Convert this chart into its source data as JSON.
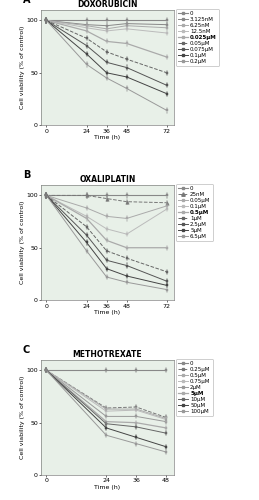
{
  "panel_A": {
    "title": "DOXORUBICIN",
    "label": "A",
    "time_points": [
      0,
      24,
      36,
      48,
      72
    ],
    "series": [
      {
        "label": "0",
        "values": [
          100,
          100,
          100,
          100,
          100
        ],
        "color": "#888888",
        "marker": "s",
        "ls": "-",
        "lw": 0.8,
        "bold": false,
        "ms": 2.0
      },
      {
        "label": "3.125nM",
        "values": [
          100,
          96,
          95,
          97,
          96
        ],
        "color": "#888888",
        "marker": "s",
        "ls": "-",
        "lw": 0.7,
        "bold": false,
        "ms": 2.0
      },
      {
        "label": "6.25nM",
        "values": [
          100,
          95,
          92,
          95,
          93
        ],
        "color": "#aaaaaa",
        "marker": "s",
        "ls": "-",
        "lw": 0.7,
        "bold": false,
        "ms": 2.0
      },
      {
        "label": "12.5nM",
        "values": [
          100,
          93,
          90,
          92,
          88
        ],
        "color": "#bbbbbb",
        "marker": "s",
        "ls": "-",
        "lw": 0.7,
        "bold": false,
        "ms": 2.0
      },
      {
        "label": "0.025μM",
        "values": [
          100,
          90,
          80,
          78,
          65
        ],
        "color": "#aaaaaa",
        "marker": "s",
        "ls": "-",
        "lw": 0.9,
        "bold": true,
        "ms": 2.0
      },
      {
        "label": "0.05μM",
        "values": [
          100,
          83,
          70,
          63,
          50
        ],
        "color": "#666666",
        "marker": "s",
        "ls": "--",
        "lw": 0.7,
        "bold": false,
        "ms": 2.0
      },
      {
        "label": "0.075μM",
        "values": [
          100,
          76,
          60,
          55,
          38
        ],
        "color": "#555555",
        "marker": "s",
        "ls": "-",
        "lw": 0.7,
        "bold": false,
        "ms": 2.0
      },
      {
        "label": "0.1μM",
        "values": [
          100,
          68,
          50,
          46,
          30
        ],
        "color": "#444444",
        "marker": "s",
        "ls": "-",
        "lw": 0.7,
        "bold": false,
        "ms": 2.0
      },
      {
        "label": "0.2μM",
        "values": [
          100,
          58,
          45,
          35,
          14
        ],
        "color": "#999999",
        "marker": "s",
        "ls": "-",
        "lw": 0.7,
        "bold": false,
        "ms": 2.0
      }
    ],
    "xlabel": "Time (h)",
    "ylabel": "Cell viability (% of control)",
    "ylim": [
      0,
      110
    ],
    "xlim": [
      -3,
      76
    ],
    "xticks": [
      0,
      24,
      36,
      48,
      72
    ],
    "yticks": [
      0,
      50,
      100
    ]
  },
  "panel_B": {
    "title": "OXALIPLATIN",
    "label": "B",
    "time_points": [
      0,
      24,
      36,
      48,
      72
    ],
    "series": [
      {
        "label": "0",
        "values": [
          100,
          100,
          100,
          100,
          100
        ],
        "color": "#888888",
        "marker": "s",
        "ls": "-",
        "lw": 0.8,
        "bold": false,
        "ms": 2.0
      },
      {
        "label": "25nM",
        "values": [
          100,
          100,
          97,
          94,
          93
        ],
        "color": "#777777",
        "marker": "^",
        "ls": "--",
        "lw": 0.7,
        "bold": false,
        "ms": 2.5
      },
      {
        "label": "0.05μM",
        "values": [
          100,
          88,
          80,
          78,
          90
        ],
        "color": "#aaaaaa",
        "marker": "s",
        "ls": "-",
        "lw": 0.7,
        "bold": false,
        "ms": 2.0
      },
      {
        "label": "0.1μM",
        "values": [
          100,
          80,
          68,
          63,
          87
        ],
        "color": "#bbbbbb",
        "marker": "s",
        "ls": "-",
        "lw": 0.7,
        "bold": false,
        "ms": 2.0
      },
      {
        "label": "0.5μM",
        "values": [
          100,
          78,
          57,
          50,
          50
        ],
        "color": "#aaaaaa",
        "marker": "s",
        "ls": "-",
        "lw": 0.9,
        "bold": true,
        "ms": 2.0
      },
      {
        "label": "1μM",
        "values": [
          100,
          70,
          47,
          40,
          27
        ],
        "color": "#666666",
        "marker": "s",
        "ls": "--",
        "lw": 0.7,
        "bold": false,
        "ms": 2.0
      },
      {
        "label": "2.5μM",
        "values": [
          100,
          62,
          38,
          33,
          18
        ],
        "color": "#555555",
        "marker": "s",
        "ls": "-",
        "lw": 0.7,
        "bold": false,
        "ms": 2.0
      },
      {
        "label": "5μM",
        "values": [
          100,
          55,
          30,
          23,
          14
        ],
        "color": "#444444",
        "marker": "s",
        "ls": "-",
        "lw": 0.7,
        "bold": false,
        "ms": 2.0
      },
      {
        "label": "6.5μM",
        "values": [
          100,
          47,
          22,
          17,
          10
        ],
        "color": "#999999",
        "marker": "s",
        "ls": "-",
        "lw": 0.7,
        "bold": false,
        "ms": 2.0
      }
    ],
    "xlabel": "Time (h)",
    "ylabel": "Cell viability (% of control)",
    "ylim": [
      0,
      110
    ],
    "xlim": [
      -3,
      76
    ],
    "xticks": [
      0,
      24,
      36,
      48,
      72
    ],
    "yticks": [
      0,
      50,
      100
    ]
  },
  "panel_C": {
    "title": "METHOTREXATE",
    "label": "C",
    "time_points": [
      0,
      24,
      36,
      48
    ],
    "series": [
      {
        "label": "0",
        "values": [
          100,
          100,
          100,
          100
        ],
        "color": "#888888",
        "marker": "s",
        "ls": "-",
        "lw": 0.8,
        "bold": false,
        "ms": 2.0
      },
      {
        "label": "0.25μM",
        "values": [
          100,
          64,
          65,
          55
        ],
        "color": "#777777",
        "marker": "s",
        "ls": "--",
        "lw": 0.7,
        "bold": false,
        "ms": 2.0
      },
      {
        "label": "0.5μM",
        "values": [
          100,
          63,
          63,
          54
        ],
        "color": "#aaaaaa",
        "marker": "s",
        "ls": "-",
        "lw": 0.7,
        "bold": false,
        "ms": 2.0
      },
      {
        "label": "0.75μM",
        "values": [
          100,
          61,
          62,
          53
        ],
        "color": "#bbbbbb",
        "marker": "s",
        "ls": "-",
        "lw": 0.7,
        "bold": false,
        "ms": 2.0
      },
      {
        "label": "2μM",
        "values": [
          100,
          56,
          56,
          51
        ],
        "color": "#999999",
        "marker": "s",
        "ls": "-",
        "lw": 0.7,
        "bold": false,
        "ms": 2.0
      },
      {
        "label": "5μM",
        "values": [
          100,
          51,
          50,
          45
        ],
        "color": "#aaaaaa",
        "marker": "s",
        "ls": "-",
        "lw": 0.9,
        "bold": true,
        "ms": 2.0
      },
      {
        "label": "10μM",
        "values": [
          100,
          49,
          46,
          40
        ],
        "color": "#666666",
        "marker": "s",
        "ls": "-",
        "lw": 0.7,
        "bold": false,
        "ms": 2.0
      },
      {
        "label": "50μM",
        "values": [
          100,
          45,
          36,
          27
        ],
        "color": "#444444",
        "marker": "s",
        "ls": "-",
        "lw": 0.7,
        "bold": false,
        "ms": 2.0
      },
      {
        "label": "100μM",
        "values": [
          100,
          38,
          30,
          22
        ],
        "color": "#999999",
        "marker": "s",
        "ls": "-",
        "lw": 0.7,
        "bold": false,
        "ms": 2.0
      }
    ],
    "xlabel": "Time (h)",
    "ylabel": "Cell viability (% of control)",
    "ylim": [
      0,
      110
    ],
    "xlim": [
      -2,
      51
    ],
    "xticks": [
      0,
      24,
      36,
      48
    ],
    "yticks": [
      0,
      50,
      100
    ]
  },
  "bg_color": "#e8f0e8",
  "fig_bg": "#ffffff",
  "font_size": 4.5,
  "title_font_size": 5.5,
  "legend_font_size": 4.0
}
